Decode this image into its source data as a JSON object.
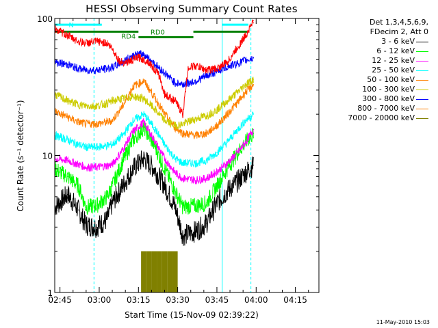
{
  "chart_data": {
    "type": "line",
    "title": "HESSI Observing Summary Count Rates",
    "xlabel": "Start Time (15-Nov-09 02:39:22)",
    "ylabel": "Count Rate (s⁻¹ detector⁻¹)",
    "yscale": "log",
    "ylim": [
      1,
      100
    ],
    "xlim_minutes": [
      -2,
      99
    ],
    "x_tick_labels": [
      "02:45",
      "03:00",
      "03:15",
      "03:30",
      "03:45",
      "04:00",
      "04:15"
    ],
    "y_tick_labels": [
      "1",
      "10",
      "100"
    ],
    "x_units_note": "x values are minutes after 02:45 on 15-Nov-09",
    "legend_header": [
      "Det 1,3,4,5,6,9,",
      "FDecim 2, Att 0"
    ],
    "series": [
      {
        "name": "3 - 6 keV",
        "color": "#000000",
        "points": [
          [
            -2,
            4.2
          ],
          [
            3,
            5.2
          ],
          [
            7,
            4.0
          ],
          [
            10,
            3.1
          ],
          [
            14,
            3.0
          ],
          [
            18,
            3.4
          ],
          [
            20,
            4.5
          ],
          [
            24,
            6
          ],
          [
            28,
            8
          ],
          [
            32,
            9.5
          ],
          [
            36,
            8
          ],
          [
            40,
            6
          ],
          [
            44,
            4.2
          ],
          [
            47,
            2.6
          ],
          [
            52,
            2.8
          ],
          [
            56,
            3.2
          ],
          [
            60,
            4.5
          ],
          [
            64,
            5.5
          ],
          [
            68,
            6.5
          ],
          [
            71,
            7.5
          ],
          [
            74,
            8.5
          ]
        ]
      },
      {
        "name": "6 - 12 keV",
        "color": "#00ff00",
        "points": [
          [
            -2,
            8
          ],
          [
            3,
            7
          ],
          [
            7,
            6
          ],
          [
            10,
            4.2
          ],
          [
            14,
            4.3
          ],
          [
            18,
            5
          ],
          [
            20,
            6
          ],
          [
            24,
            9
          ],
          [
            28,
            13
          ],
          [
            32,
            16
          ],
          [
            36,
            12
          ],
          [
            40,
            8
          ],
          [
            44,
            5.5
          ],
          [
            47,
            4.2
          ],
          [
            52,
            4.3
          ],
          [
            56,
            4.5
          ],
          [
            60,
            6
          ],
          [
            64,
            8
          ],
          [
            68,
            10.5
          ],
          [
            71,
            12.5
          ],
          [
            74,
            14.5
          ]
        ]
      },
      {
        "name": "12 - 25 keV",
        "color": "#ff00ff",
        "points": [
          [
            -2,
            9.5
          ],
          [
            3,
            9.2
          ],
          [
            7,
            8.6
          ],
          [
            10,
            8.2
          ],
          [
            14,
            8.2
          ],
          [
            18,
            8.4
          ],
          [
            20,
            8.6
          ],
          [
            24,
            11
          ],
          [
            28,
            15
          ],
          [
            32,
            17.5
          ],
          [
            36,
            13
          ],
          [
            40,
            9.5
          ],
          [
            44,
            7.5
          ],
          [
            47,
            6.8
          ],
          [
            52,
            6.6
          ],
          [
            56,
            6.8
          ],
          [
            60,
            7.6
          ],
          [
            64,
            8.8
          ],
          [
            68,
            10.5
          ],
          [
            71,
            12.5
          ],
          [
            74,
            15.5
          ]
        ]
      },
      {
        "name": "25 - 50 keV",
        "color": "#00ffff",
        "points": [
          [
            -2,
            14
          ],
          [
            3,
            13
          ],
          [
            7,
            12
          ],
          [
            10,
            11.5
          ],
          [
            14,
            11.5
          ],
          [
            18,
            11.8
          ],
          [
            20,
            12
          ],
          [
            24,
            14
          ],
          [
            28,
            18
          ],
          [
            32,
            20
          ],
          [
            36,
            16
          ],
          [
            40,
            12
          ],
          [
            44,
            9.5
          ],
          [
            47,
            8.8
          ],
          [
            52,
            8.8
          ],
          [
            56,
            9.2
          ],
          [
            60,
            10.5
          ],
          [
            64,
            12.5
          ],
          [
            68,
            15.5
          ],
          [
            71,
            18
          ],
          [
            74,
            20
          ]
        ]
      },
      {
        "name": "50 - 100 keV",
        "color": "#ff8000",
        "points": [
          [
            -2,
            21
          ],
          [
            3,
            19
          ],
          [
            7,
            17.5
          ],
          [
            10,
            17
          ],
          [
            14,
            17
          ],
          [
            18,
            17.5
          ],
          [
            20,
            18
          ],
          [
            24,
            23
          ],
          [
            28,
            32
          ],
          [
            32,
            35
          ],
          [
            36,
            27
          ],
          [
            40,
            20
          ],
          [
            44,
            16
          ],
          [
            47,
            14.5
          ],
          [
            52,
            14
          ],
          [
            56,
            14.5
          ],
          [
            60,
            16.5
          ],
          [
            64,
            20
          ],
          [
            68,
            24.5
          ],
          [
            71,
            29
          ],
          [
            74,
            33
          ]
        ]
      },
      {
        "name": "100 - 300 keV",
        "color": "#cccc00",
        "points": [
          [
            -2,
            28
          ],
          [
            3,
            25
          ],
          [
            7,
            23.5
          ],
          [
            10,
            23
          ],
          [
            14,
            23
          ],
          [
            18,
            24
          ],
          [
            20,
            25
          ],
          [
            24,
            26
          ],
          [
            28,
            27
          ],
          [
            32,
            26
          ],
          [
            36,
            22
          ],
          [
            40,
            18
          ],
          [
            44,
            16.5
          ],
          [
            47,
            17
          ],
          [
            52,
            18.5
          ],
          [
            56,
            19.5
          ],
          [
            60,
            21.5
          ],
          [
            64,
            25
          ],
          [
            68,
            29
          ],
          [
            71,
            33
          ],
          [
            74,
            36
          ]
        ]
      },
      {
        "name": "300 - 800 keV",
        "color": "#0000ff",
        "points": [
          [
            -2,
            48
          ],
          [
            3,
            46
          ],
          [
            7,
            43
          ],
          [
            10,
            42
          ],
          [
            14,
            42
          ],
          [
            18,
            43
          ],
          [
            20,
            44
          ],
          [
            24,
            48
          ],
          [
            28,
            54
          ],
          [
            32,
            55
          ],
          [
            36,
            47
          ],
          [
            40,
            40
          ],
          [
            44,
            34
          ],
          [
            47,
            33
          ],
          [
            52,
            35
          ],
          [
            56,
            38
          ],
          [
            60,
            41
          ],
          [
            64,
            44.5
          ],
          [
            68,
            47
          ],
          [
            71,
            49.5
          ],
          [
            74,
            51.5
          ]
        ]
      },
      {
        "name": "800 - 7000 keV",
        "color": "#ff8000",
        "points": []
      },
      {
        "name": "7000 - 20000 keV",
        "color": "#808000",
        "points": [
          [
            31,
            2
          ],
          [
            33,
            2
          ],
          [
            35,
            2
          ],
          [
            37,
            2
          ],
          [
            39,
            2
          ],
          [
            41,
            2
          ],
          [
            43,
            2
          ],
          [
            44,
            1
          ]
        ]
      },
      {
        "name": "",
        "color": "#ff0000",
        "points": [
          [
            -2,
            84
          ],
          [
            3,
            75
          ],
          [
            7,
            68
          ],
          [
            10,
            66
          ],
          [
            14,
            68
          ],
          [
            18,
            66
          ],
          [
            20,
            60
          ],
          [
            23,
            48
          ],
          [
            26,
            48
          ],
          [
            30,
            52
          ],
          [
            34,
            48
          ],
          [
            38,
            38
          ],
          [
            40,
            28
          ],
          [
            44,
            25
          ],
          [
            47,
            20
          ],
          [
            49,
            44
          ],
          [
            52,
            45
          ],
          [
            56,
            42
          ],
          [
            60,
            43
          ],
          [
            64,
            48
          ],
          [
            68,
            62
          ],
          [
            71,
            75
          ],
          [
            74,
            97
          ]
        ]
      }
    ],
    "flag_bars": [
      {
        "label": "N",
        "color": "#00ffff",
        "x0": -2,
        "x1": 16,
        "y": 90
      },
      {
        "label": "",
        "color": "#00ffff",
        "x0": 62,
        "x1": 72,
        "y": 90
      },
      {
        "label": "RD4",
        "color": "#008000",
        "x0": -2,
        "x1": 30,
        "y": 80
      },
      {
        "label": "RD0",
        "color": "#008000",
        "x0": 30,
        "x1": 51,
        "y": 73
      },
      {
        "label": "",
        "color": "#008000",
        "x0": 51,
        "x1": 72,
        "y": 80
      }
    ],
    "vlines": [
      {
        "x": -2,
        "color": "#00ffff",
        "style": "solid"
      },
      {
        "x": 13,
        "color": "#00ffff",
        "style": "dashed"
      },
      {
        "x": 62,
        "color": "#00ffff",
        "style": "solid"
      },
      {
        "x": 73,
        "color": "#00ffff",
        "style": "dashed"
      }
    ],
    "grid": false,
    "legend_position": "right"
  },
  "footer_timestamp": "11-May-2010 15:03"
}
